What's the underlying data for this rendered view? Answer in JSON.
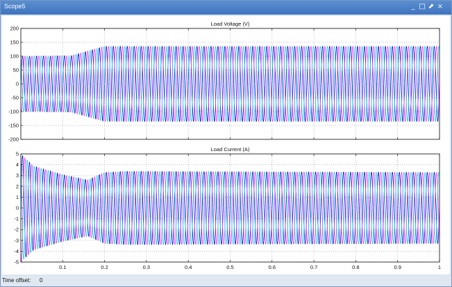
{
  "window": {
    "title": "Scope5",
    "controls": [
      "minimize-icon",
      "restore-icon",
      "pin-icon",
      "close-icon"
    ],
    "control_glyphs": [
      "_",
      "□",
      "⬈",
      "×"
    ],
    "frame_color": "#3f74bf"
  },
  "status": {
    "label": "Time offset:",
    "value": "0"
  },
  "colors": {
    "series": [
      "#0a0ad0",
      "#ff33ff",
      "#00d8e8"
    ],
    "grid": "#a8a8a8",
    "axis": "#000000"
  },
  "chart_data": [
    {
      "type": "line",
      "title": "Load Voltage (V)",
      "xlabel": "",
      "ylabel": "",
      "xlim": [
        0,
        1
      ],
      "ylim": [
        -200,
        200
      ],
      "xticks": [
        0.1,
        0.2,
        0.3,
        0.4,
        0.5,
        0.6,
        0.7,
        0.8,
        0.9,
        1
      ],
      "xtick_labels": [
        "0.1",
        "0.2",
        "0.3",
        "0.4",
        "0.5",
        "0.6",
        "0.7",
        "0.8",
        "0.9",
        "1"
      ],
      "yticks": [
        -200,
        -150,
        -100,
        -50,
        0,
        50,
        100,
        150,
        200
      ],
      "ytick_labels": [
        "-200",
        "-150",
        "-100",
        "-50",
        "0",
        "50",
        "100",
        "150",
        "200"
      ],
      "grid": true,
      "frequency_hz": 60,
      "envelope": {
        "t": [
          0,
          0.12,
          0.2,
          1
        ],
        "amplitude": [
          100,
          102,
          136,
          136
        ]
      },
      "series": [
        {
          "phase_deg": 0,
          "color": "#0a0ad0"
        },
        {
          "phase_deg": -120,
          "color": "#ff33ff"
        },
        {
          "phase_deg": 120,
          "color": "#00d8e8"
        }
      ]
    },
    {
      "type": "line",
      "title": "Load Current (A)",
      "xlabel": "",
      "ylabel": "",
      "xlim": [
        0,
        1
      ],
      "ylim": [
        -5,
        5
      ],
      "xticks": [
        0.1,
        0.2,
        0.3,
        0.4,
        0.5,
        0.6,
        0.7,
        0.8,
        0.9,
        1
      ],
      "xtick_labels": [
        "0.1",
        "0.2",
        "0.3",
        "0.4",
        "0.5",
        "0.6",
        "0.7",
        "0.8",
        "0.9",
        "1"
      ],
      "yticks": [
        -5,
        -4,
        -3,
        -2,
        -1,
        0,
        1,
        2,
        3,
        4,
        5
      ],
      "ytick_labels": [
        "-5",
        "-4",
        "-3",
        "-2",
        "-1",
        "0",
        "1",
        "2",
        "3",
        "4",
        "5"
      ],
      "grid": true,
      "frequency_hz": 60,
      "envelope": {
        "t": [
          0,
          0.03,
          0.1,
          0.16,
          0.2,
          0.25,
          1
        ],
        "amplitude": [
          5,
          3.9,
          3.1,
          2.6,
          3.3,
          3.4,
          3.3
        ]
      },
      "series": [
        {
          "phase_deg": 0,
          "color": "#0a0ad0"
        },
        {
          "phase_deg": -120,
          "color": "#ff33ff"
        },
        {
          "phase_deg": 120,
          "color": "#00d8e8"
        }
      ]
    }
  ]
}
